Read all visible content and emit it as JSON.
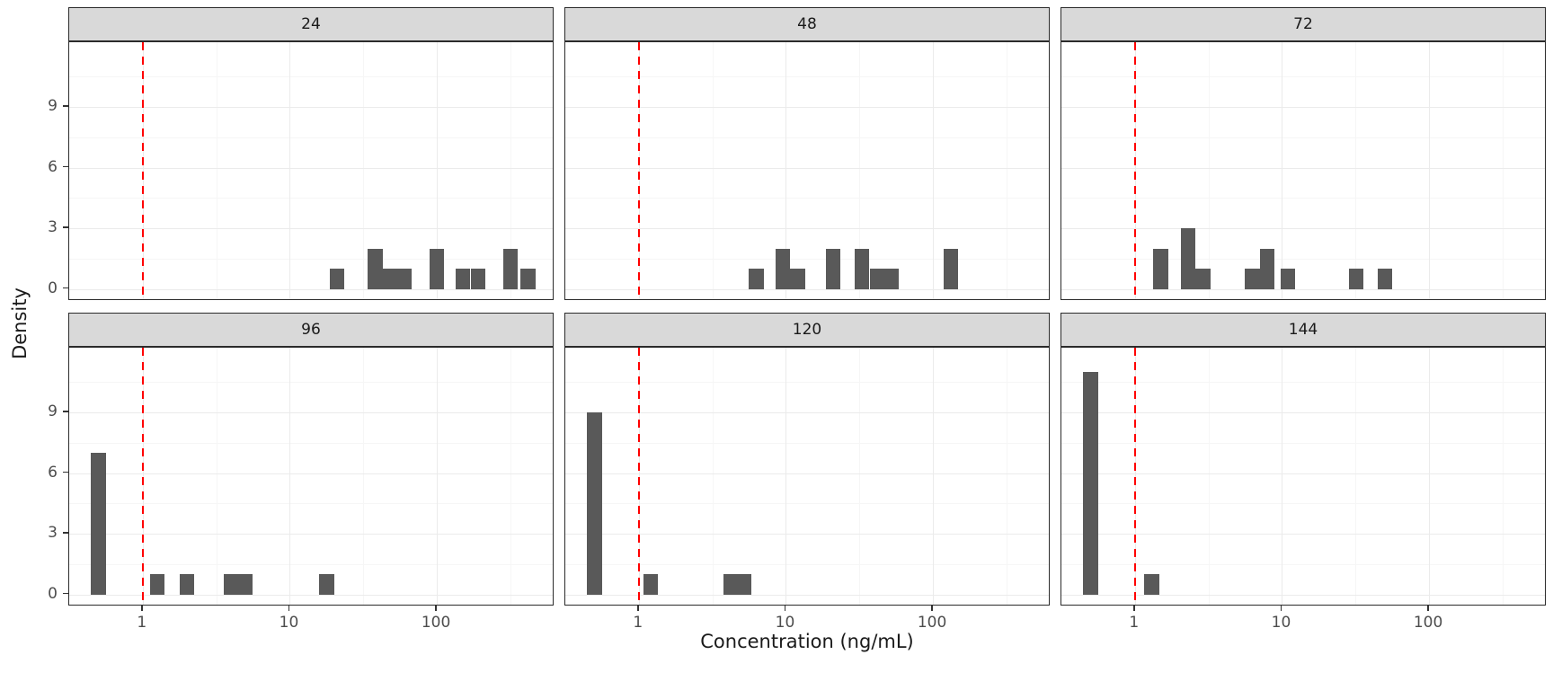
{
  "figure": {
    "x_axis_title": "Concentration (ng/mL)",
    "y_axis_title": "Density",
    "facet_labels": [
      "24",
      "48",
      "72",
      "96",
      "120",
      "144"
    ]
  },
  "chart_data": {
    "type": "bar",
    "subtype": "faceted-histogram-log-x",
    "title": "",
    "xlabel": "Concentration (ng/mL)",
    "ylabel": "Density",
    "x_scale": "log10",
    "x_tick_values": [
      1,
      10,
      100
    ],
    "x_tick_labels": [
      "1",
      "10",
      "100"
    ],
    "x_minor_log10": [
      0.5,
      1.5,
      2.5
    ],
    "y_tick_values": [
      0,
      3,
      6,
      9
    ],
    "y_minor_values": [
      1.5,
      4.5,
      7.5,
      10.5
    ],
    "x_domain_log10": [
      -0.5,
      2.8
    ],
    "y_domain": [
      -0.6,
      12.2
    ],
    "bin_width_log10": 0.1,
    "reference_line": {
      "x": 1,
      "style": "dashed"
    },
    "legend": "none",
    "grid": "on",
    "layout": {
      "rows": 2,
      "cols": 3
    },
    "colors": {
      "bar": "#595959",
      "strip_bg": "#d9d9d9",
      "panel_border": "#2b2b2b",
      "grid_major": "#ebebeb",
      "grid_minor": "#f6f6f6",
      "reference_line": "#ff0000",
      "tick_text": "#4d4d4d",
      "title_text": "#1a1a1a"
    },
    "facets": [
      {
        "label": "24",
        "bars": [
          [
            21,
            1
          ],
          [
            38,
            2
          ],
          [
            48,
            1
          ],
          [
            60,
            1
          ],
          [
            100,
            2
          ],
          [
            150,
            1
          ],
          [
            190,
            1
          ],
          [
            316,
            2
          ],
          [
            417,
            1
          ]
        ]
      },
      {
        "label": "48",
        "bars": [
          [
            6.3,
            1
          ],
          [
            9.5,
            2
          ],
          [
            12,
            1
          ],
          [
            21,
            2
          ],
          [
            33,
            2
          ],
          [
            42,
            1
          ],
          [
            52,
            1
          ],
          [
            132,
            2
          ]
        ]
      },
      {
        "label": "72",
        "bars": [
          [
            1.5,
            2
          ],
          [
            2.3,
            3
          ],
          [
            2.9,
            1
          ],
          [
            6.3,
            1
          ],
          [
            7.9,
            2
          ],
          [
            11,
            1
          ],
          [
            32,
            1
          ],
          [
            50,
            1
          ]
        ]
      },
      {
        "label": "96",
        "bars": [
          [
            0.5,
            7
          ],
          [
            1.26,
            1
          ],
          [
            2,
            1
          ],
          [
            4,
            1
          ],
          [
            5,
            1
          ],
          [
            17.8,
            1
          ]
        ]
      },
      {
        "label": "120",
        "bars": [
          [
            0.5,
            9
          ],
          [
            1.2,
            1
          ],
          [
            4.2,
            1
          ],
          [
            5.2,
            1
          ]
        ]
      },
      {
        "label": "144",
        "bars": [
          [
            0.5,
            11
          ],
          [
            1.3,
            1
          ]
        ]
      }
    ]
  }
}
